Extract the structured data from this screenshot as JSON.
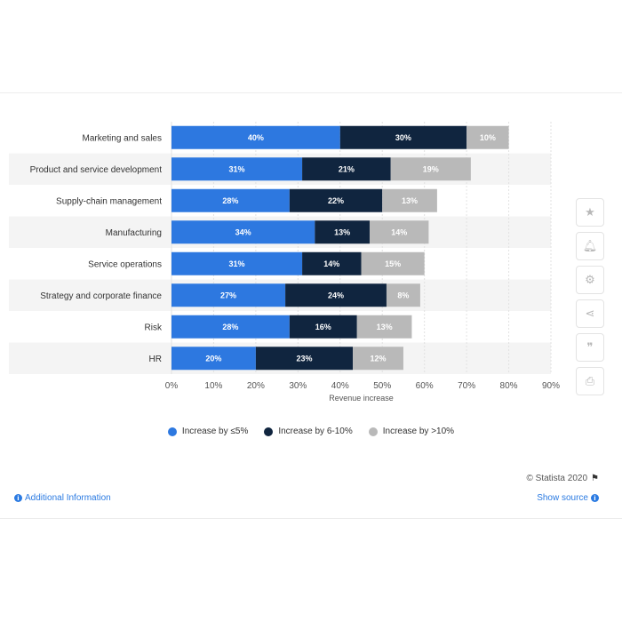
{
  "colors": {
    "le5": "#2d78e0",
    "6to10": "#10253f",
    "gt10": "#b9b9b9",
    "link": "#2a7ae2",
    "band": "#f4f4f4"
  },
  "chart_data": {
    "type": "bar",
    "orientation": "horizontal",
    "stacked": true,
    "categories": [
      "Marketing and sales",
      "Product and service development",
      "Supply-chain management",
      "Manufacturing",
      "Service operations",
      "Strategy and corporate finance",
      "Risk",
      "HR"
    ],
    "series": [
      {
        "name": "Increase by ≤5%",
        "color": "#2d78e0",
        "values": [
          40,
          31,
          28,
          34,
          31,
          27,
          28,
          20
        ]
      },
      {
        "name": "Increase by 6-10%",
        "color": "#10253f",
        "values": [
          30,
          21,
          22,
          13,
          14,
          24,
          16,
          23
        ]
      },
      {
        "name": "Increase by >10%",
        "color": "#b9b9b9",
        "values": [
          10,
          19,
          13,
          14,
          15,
          8,
          13,
          12
        ]
      }
    ],
    "xlabel": "Revenue increase",
    "ylabel": "",
    "xlim": [
      0,
      90
    ],
    "xticks": [
      "0%",
      "10%",
      "20%",
      "30%",
      "40%",
      "50%",
      "60%",
      "70%",
      "80%",
      "90%"
    ],
    "value_suffix": "%",
    "grid": true,
    "legend_position": "bottom"
  },
  "legend": {
    "items": [
      "Increase by ≤5%",
      "Increase by 6-10%",
      "Increase by >10%"
    ]
  },
  "toolbar": {
    "icons": [
      "star-icon",
      "bell-icon",
      "gear-icon",
      "share-icon",
      "quote-icon",
      "print-icon"
    ]
  },
  "footer": {
    "credit": "© Statista 2020",
    "additional_info": "Additional Information",
    "show_source": "Show source"
  }
}
